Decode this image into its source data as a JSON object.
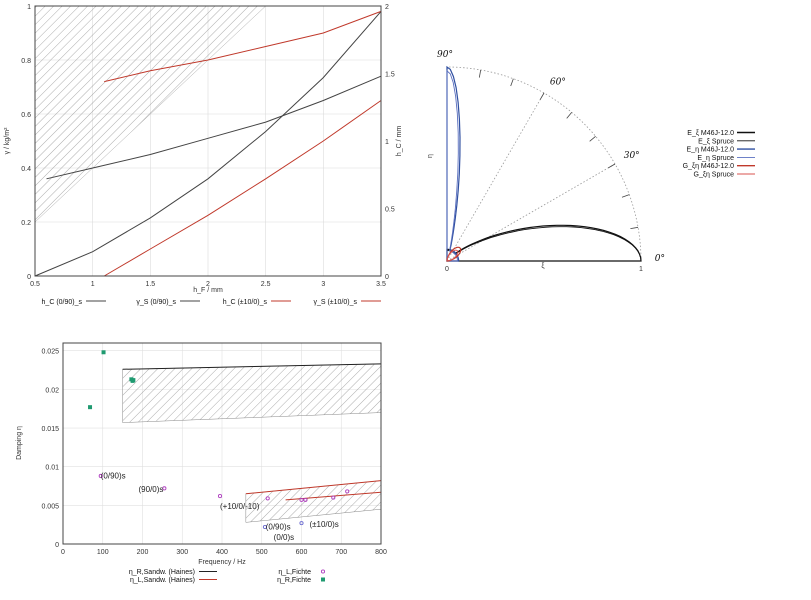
{
  "chart_data": [
    {
      "type": "line",
      "xlabel": "h_F / mm",
      "ylabel": "γ / kg/m²",
      "y2label": "h_C / mm",
      "xlim": [
        0.5,
        3.5
      ],
      "ylim": [
        0,
        1
      ],
      "y2lim": [
        0,
        2
      ],
      "xticks": [
        "0.5",
        "1",
        "1.5",
        "2",
        "2.5",
        "3",
        "3.5"
      ],
      "yticks": [
        "0",
        "0.2",
        "0.4",
        "0.6",
        "0.8",
        "1"
      ],
      "y2ticks": [
        "0",
        "0.5",
        "1",
        "1.5",
        "2"
      ],
      "grid": true,
      "legend_position": "bottom",
      "hatched_region": {
        "x": [
          0.5,
          2.5
        ],
        "y_lower_at_x_start": 0.2,
        "y_upper": 1.0
      },
      "series": [
        {
          "name": "h_C (0/90)_s",
          "color": "#444444",
          "axis": "y2",
          "x": [
            0.5,
            1.0,
            1.5,
            2.0,
            2.5,
            3.0,
            3.5
          ],
          "y": [
            0.0,
            0.18,
            0.43,
            0.72,
            1.07,
            1.47,
            1.96
          ]
        },
        {
          "name": "γ_S (0/90)_s",
          "color": "#444444",
          "axis": "y",
          "x": [
            0.6,
            1.0,
            1.5,
            2.0,
            2.5,
            3.0,
            3.5
          ],
          "y": [
            0.36,
            0.4,
            0.45,
            0.51,
            0.57,
            0.65,
            0.74
          ]
        },
        {
          "name": "h_C (±10/0)_s",
          "color": "#c0392b",
          "axis": "y2",
          "x": [
            1.1,
            1.5,
            2.0,
            2.5,
            3.0,
            3.5
          ],
          "y": [
            0.0,
            0.2,
            0.45,
            0.72,
            1.0,
            1.3
          ]
        },
        {
          "name": "γ_S (±10/0)_s",
          "color": "#c0392b",
          "axis": "y",
          "x": [
            1.1,
            1.5,
            2.0,
            2.5,
            3.0,
            3.5
          ],
          "y": [
            0.72,
            0.76,
            0.8,
            0.85,
            0.9,
            0.98
          ]
        }
      ]
    },
    {
      "type": "line",
      "subtype": "polar",
      "xlabel": "ξ",
      "ylabel": "η",
      "angle_labels": [
        "0°",
        "30°",
        "60°",
        "90°"
      ],
      "radial_ticks": [
        "0",
        "1"
      ],
      "legend_position": "right",
      "series": [
        {
          "name": "E_ξ M46J-12.0",
          "color": "#111111",
          "shape": "lobe_along_0",
          "peak": 1.0,
          "width_deg": 25
        },
        {
          "name": "E_ξ Spruce",
          "color": "#111111",
          "shape": "lobe_along_0",
          "peak": 1.0,
          "width_deg": 24
        },
        {
          "name": "E_η M46J-12.0",
          "color": "#2f4fa0",
          "shape": "lobe_along_90",
          "peak": 1.0,
          "width_deg": 9
        },
        {
          "name": "E_η Spruce",
          "color": "#5a6fc0",
          "shape": "lobe_along_90",
          "peak": 0.98,
          "width_deg": 8
        },
        {
          "name": "G_ξη M46J-12.0",
          "color": "#c0392b",
          "shape": "lobe_along_45",
          "peak": 0.09
        },
        {
          "name": "G_ξη Spruce",
          "color": "#d9534f",
          "shape": "lobe_along_45",
          "peak": 0.07
        }
      ]
    },
    {
      "type": "scatter",
      "xlabel": "Frequency / Hz",
      "ylabel": "Damping η",
      "xlim": [
        0,
        800
      ],
      "ylim": [
        0,
        0.026
      ],
      "xticks": [
        "0",
        "100",
        "200",
        "300",
        "400",
        "500",
        "600",
        "700",
        "800"
      ],
      "yticks": [
        "0",
        "0.005",
        "0.01",
        "0.015",
        "0.02",
        "0.025"
      ],
      "grid": true,
      "legend_position": "bottom",
      "series": [
        {
          "name": "η_R,Sandw. (Haines)",
          "kind": "band",
          "color": "#222222",
          "x": [
            150,
            800
          ],
          "upper": [
            0.0226,
            0.0233
          ],
          "lower": [
            0.0157,
            0.017
          ]
        },
        {
          "name": "η_L,Sandw. (Haines)",
          "kind": "band",
          "color": "#c0392b",
          "x": [
            460,
            800
          ],
          "upper": [
            0.0065,
            0.0082
          ],
          "lower": [
            0.0028,
            0.0045
          ],
          "line_x": [
            560,
            800
          ],
          "line_y": [
            0.0057,
            0.0067
          ]
        },
        {
          "name": "η_L,Fichte",
          "kind": "points",
          "color": "#b040c0",
          "x": [
            95,
            255,
            395,
            515,
            600,
            610,
            680,
            715
          ],
          "y": [
            0.0088,
            0.0072,
            0.0062,
            0.0059,
            0.0057,
            0.0057,
            0.006,
            0.0068
          ]
        },
        {
          "name": "η_R,Fichte",
          "kind": "points",
          "color": "#1f9a70",
          "x": [
            68,
            102,
            172,
            175,
            177
          ],
          "y": [
            0.0177,
            0.0248,
            0.0213,
            0.0211,
            0.0212
          ]
        },
        {
          "name": "",
          "kind": "points",
          "color": "#6b6bd0",
          "x": [
            508,
            600
          ],
          "y": [
            0.0022,
            0.0027
          ]
        }
      ],
      "annotations": [
        {
          "text": "(0/90)s",
          "x": 95,
          "y": 0.0085
        },
        {
          "text": "(90/0)s",
          "x": 190,
          "y": 0.0067
        },
        {
          "text": "(+10/0/-10)",
          "x": 395,
          "y": 0.0045
        },
        {
          "text": "(0/90)s",
          "x": 510,
          "y": 0.0019
        },
        {
          "text": "(±10/0)s",
          "x": 620,
          "y": 0.0022
        },
        {
          "text": "(0/0)s",
          "x": 530,
          "y": 0.0005
        }
      ]
    }
  ]
}
